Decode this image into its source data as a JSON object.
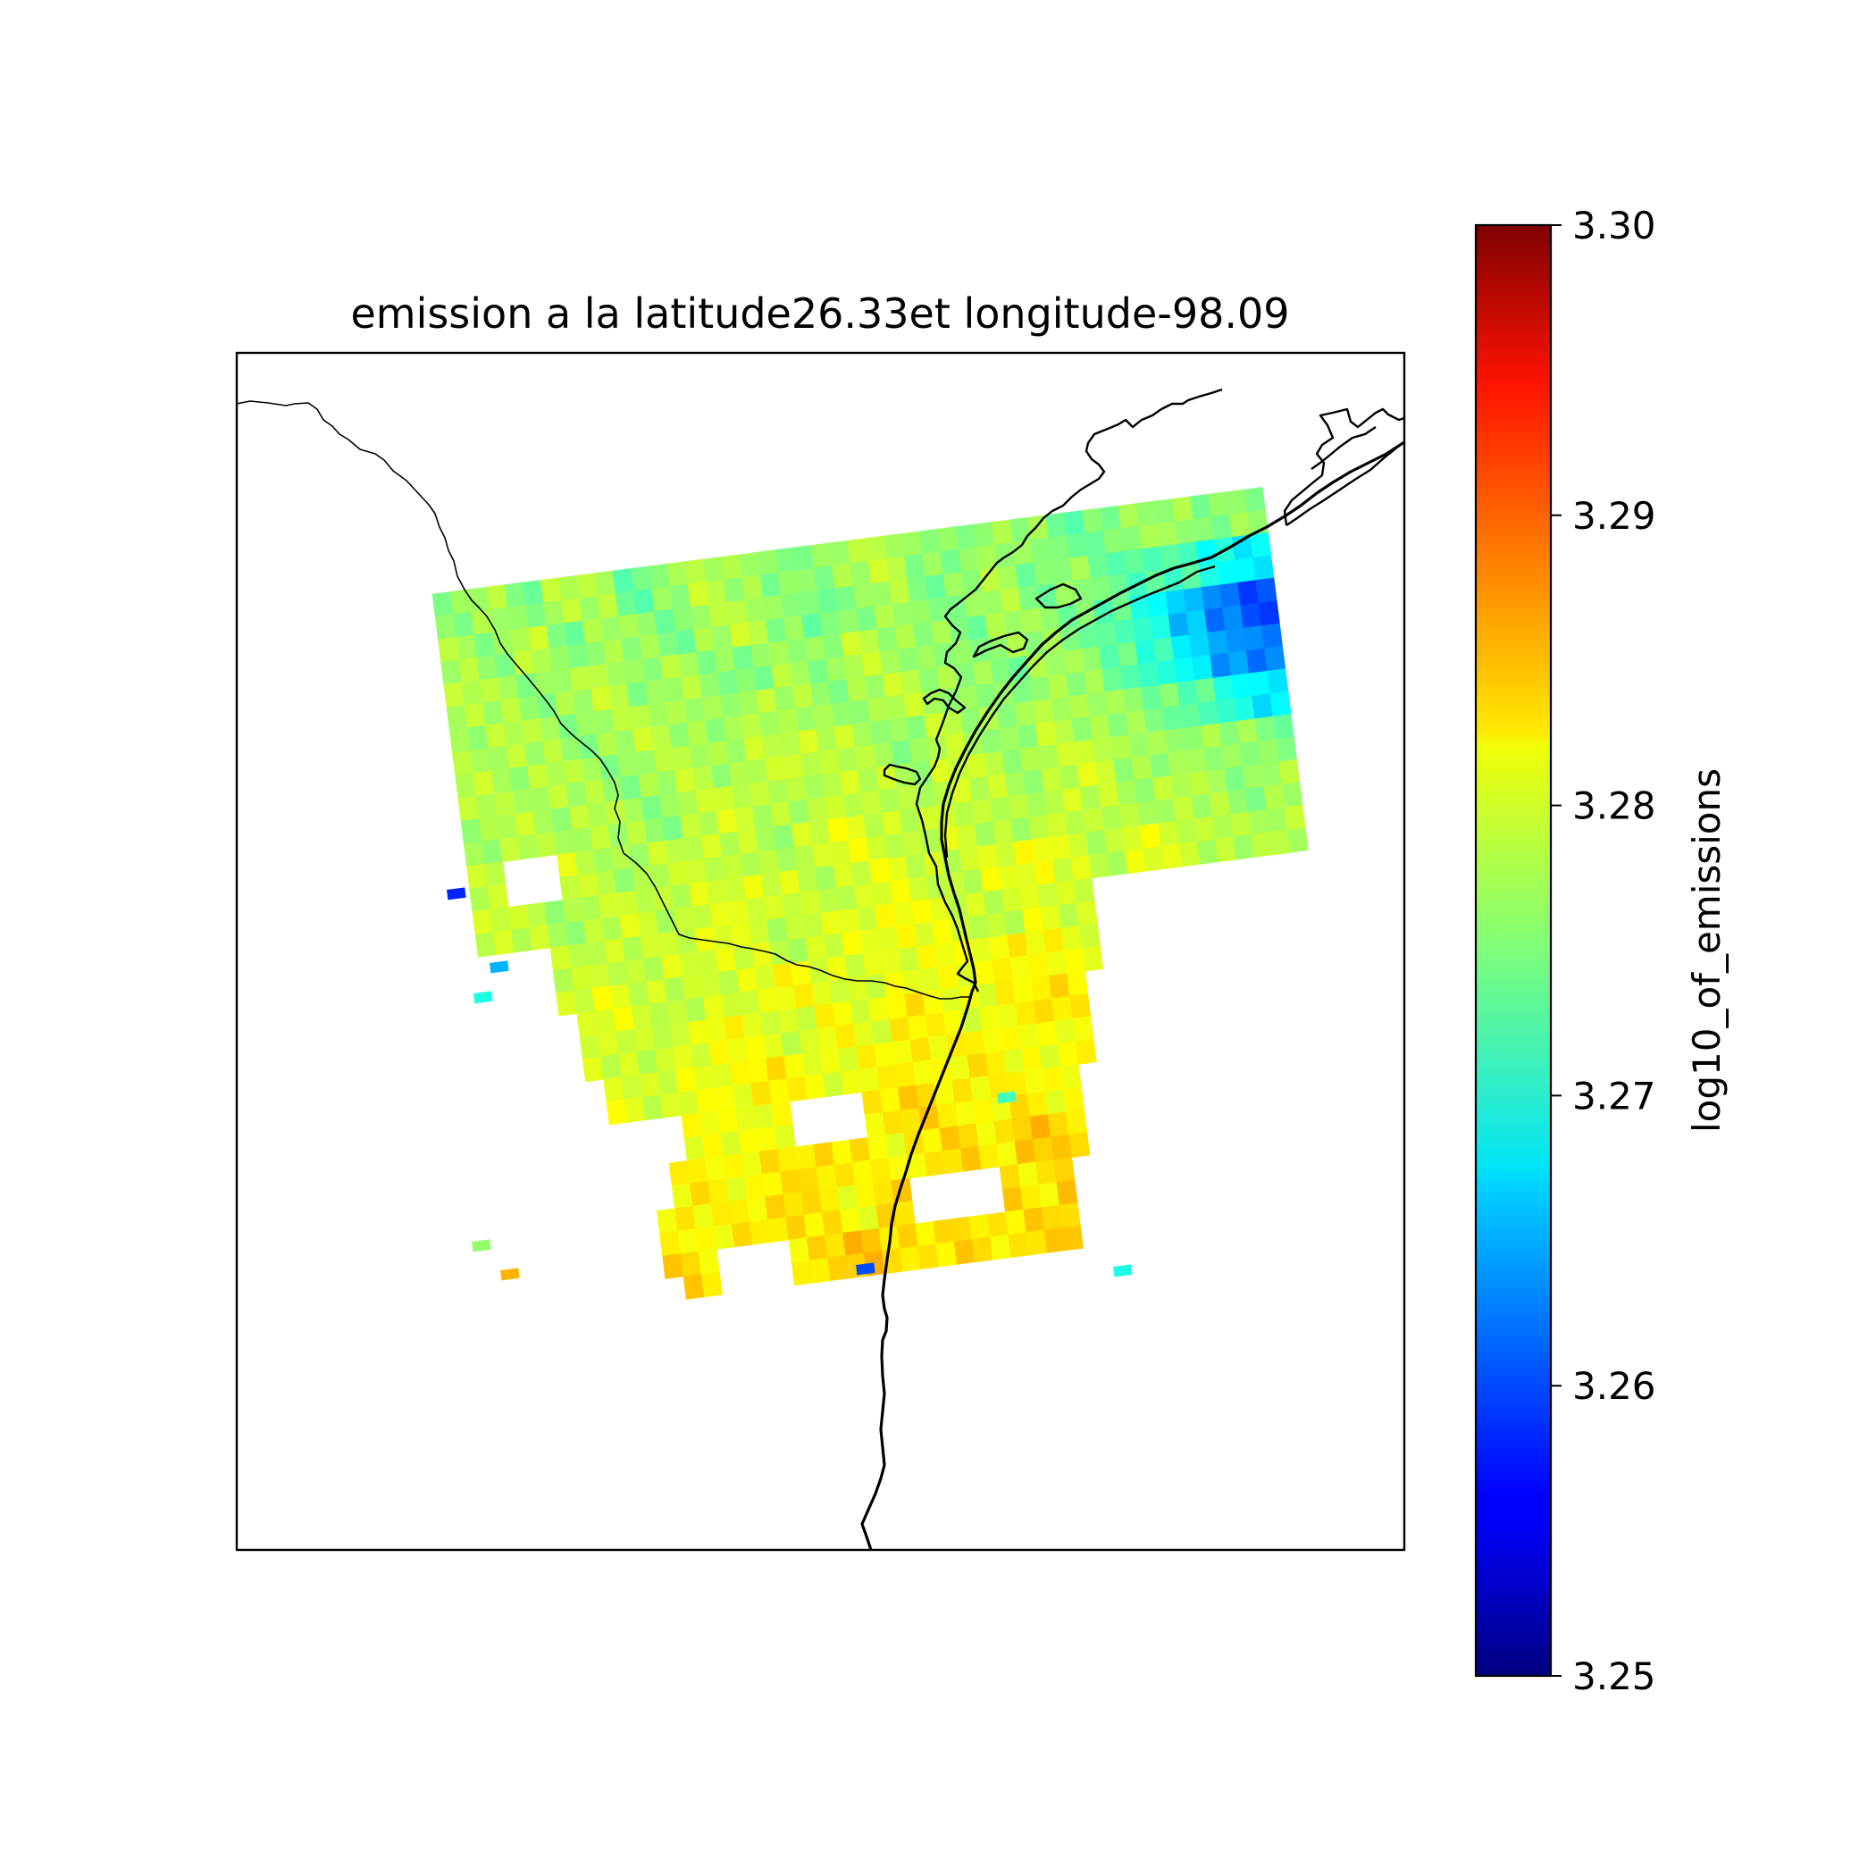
{
  "chart_data": {
    "type": "heatmap",
    "title": "emission a la latitude26.33et longitude-98.09",
    "colorbar": {
      "label": "log10_of_emissions",
      "colormap": "jet",
      "range": [
        3.25,
        3.3
      ],
      "ticks": [
        "3.25",
        "3.26",
        "3.27",
        "3.28",
        "3.29",
        "3.30"
      ],
      "tick_values": [
        3.25,
        3.26,
        3.27,
        3.28,
        3.29,
        3.3
      ],
      "position": "right"
    },
    "grid": false,
    "map_features": [
      "coastline",
      "state-border"
    ],
    "value_summary": {
      "typical": 3.277,
      "min_observed": 3.255,
      "max_observed": 3.285
    },
    "swath_rows": [
      {
        "start": 22,
        "end": 90,
        "values": [
          3.276,
          3.277,
          3.275,
          3.278,
          3.277,
          3.274,
          3.276,
          3.278,
          3.277,
          3.275,
          3.276,
          3.277,
          3.278,
          3.276,
          3.275,
          3.277,
          3.276,
          3.274,
          3.275,
          3.276,
          3.277,
          3.275,
          3.276,
          3.277
        ]
      },
      {
        "start": 22,
        "end": 90,
        "values": [
          3.277,
          3.276,
          3.278,
          3.275,
          3.277,
          3.276,
          3.275,
          3.277,
          3.278,
          3.276,
          3.274,
          3.276,
          3.277,
          3.275,
          3.276,
          3.277,
          3.275,
          3.276,
          3.274,
          3.273,
          3.272,
          3.27,
          3.268,
          3.266
        ]
      },
      {
        "start": 22,
        "end": 90,
        "values": [
          3.278,
          3.277,
          3.276,
          3.277,
          3.278,
          3.276,
          3.277,
          3.276,
          3.275,
          3.277,
          3.276,
          3.278,
          3.277,
          3.276,
          3.275,
          3.277,
          3.276,
          3.275,
          3.273,
          3.27,
          3.266,
          3.262,
          3.26,
          3.264
        ]
      },
      {
        "start": 22,
        "end": 90,
        "values": [
          3.277,
          3.278,
          3.277,
          3.276,
          3.277,
          3.278,
          3.277,
          3.276,
          3.278,
          3.277,
          3.276,
          3.277,
          3.278,
          3.277,
          3.276,
          3.275,
          3.277,
          3.276,
          3.274,
          3.271,
          3.268,
          3.264,
          3.262,
          3.266
        ]
      },
      {
        "start": 22,
        "end": 90,
        "values": [
          3.278,
          3.277,
          3.278,
          3.277,
          3.276,
          3.277,
          3.278,
          3.277,
          3.278,
          3.279,
          3.278,
          3.277,
          3.276,
          3.278,
          3.277,
          3.276,
          3.278,
          3.277,
          3.276,
          3.275,
          3.273,
          3.27,
          3.268,
          3.27
        ]
      },
      {
        "start": 22,
        "end": 90,
        "values": [
          3.277,
          3.278,
          3.277,
          3.278,
          3.277,
          3.276,
          3.278,
          3.279,
          3.278,
          3.277,
          3.279,
          3.278,
          3.277,
          3.279,
          3.278,
          3.277,
          3.278,
          3.279,
          3.277,
          3.276,
          3.277,
          3.276,
          3.275,
          3.274
        ]
      },
      {
        "start": 22,
        "end": 90,
        "values": [
          3.278,
          3.277,
          3.279,
          3.278,
          3.277,
          3.278,
          3.279,
          3.278,
          3.277,
          3.279,
          3.28,
          3.279,
          3.278,
          3.279,
          3.278,
          3.277,
          3.279,
          3.278,
          3.277,
          3.278,
          3.277,
          3.276,
          3.277,
          3.276
        ]
      },
      {
        "start": 22,
        "end": 90,
        "values": [
          3.279,
          3.278,
          3.277,
          3.278,
          3.279,
          3.278,
          3.279,
          3.28,
          3.279,
          3.278,
          3.279,
          3.28,
          3.279,
          3.278,
          3.28,
          3.281,
          3.279,
          3.278,
          3.28,
          3.279,
          3.278,
          3.277,
          3.278,
          3.277
        ]
      },
      {
        "start": 22,
        "end": 90,
        "values": [
          3.278,
          3.279,
          3.278,
          3.279,
          3.278,
          3.279,
          3.28,
          3.279,
          3.278,
          3.279,
          3.28,
          3.281,
          3.28,
          3.279,
          3.278,
          3.28,
          3.279,
          3.281,
          3.28,
          3.279,
          3.278,
          3.279,
          3.278,
          3.276
        ]
      },
      {
        "start": 22,
        "end": 90,
        "values": [
          3.279,
          3.278,
          3.279,
          3.28,
          3.279,
          3.278,
          3.279,
          3.28,
          3.281,
          3.28,
          3.279,
          3.28,
          3.281,
          3.28,
          3.282,
          3.281,
          3.28,
          3.279,
          3.28,
          3.279,
          3.278,
          3.277,
          3.276,
          3.275
        ]
      },
      {
        "start": 22,
        "end": 90,
        "values": [
          3.28,
          3.279,
          3.28,
          3.279,
          3.278,
          3.28,
          3.281,
          3.28,
          3.279,
          3.281,
          3.28,
          3.282,
          3.281,
          3.28,
          3.281,
          3.283,
          3.282,
          3.281,
          3.28,
          3.279,
          3.278,
          3.276,
          3.27,
          3.264
        ]
      },
      {
        "start": 22,
        "end": 90,
        "values": [
          3.279,
          3.28,
          3.281,
          3.28,
          3.279,
          3.28,
          3.281,
          3.282,
          3.281,
          3.28,
          3.281,
          3.282,
          3.281,
          3.282,
          3.281,
          3.28,
          3.282,
          3.281,
          3.28,
          3.279,
          3.278,
          3.274,
          3.262,
          3.256
        ]
      },
      {
        "start": 22,
        "end": 90,
        "values": [
          3.28,
          3.281,
          3.28,
          3.281,
          3.282,
          3.281,
          3.28,
          3.281,
          3.282,
          3.281,
          3.282,
          3.283,
          3.282,
          3.281,
          3.282,
          3.281,
          3.283,
          3.282,
          3.281,
          3.28,
          3.279,
          3.277,
          3.268,
          3.262
        ]
      },
      {
        "start": 22,
        "end": 90,
        "values": [
          3.281,
          3.28,
          3.281,
          3.282,
          3.281,
          3.282,
          3.281,
          3.282,
          3.283,
          3.282,
          3.281,
          3.282,
          3.283,
          3.282,
          3.284,
          3.283,
          3.282,
          3.281,
          3.282,
          3.281,
          3.28,
          3.279,
          3.278,
          3.276
        ]
      },
      {
        "start": 22,
        "end": 90,
        "values": [
          3.28,
          3.281,
          3.282,
          3.281,
          3.282,
          3.281,
          3.282,
          3.283,
          3.282,
          3.281,
          3.283,
          3.282,
          3.281,
          3.283,
          3.282,
          3.284,
          3.283,
          3.282,
          3.281,
          3.282,
          3.281,
          3.28,
          3.279,
          3.278
        ]
      },
      {
        "start": 22,
        "end": 90,
        "values": [
          3.281,
          3.282,
          3.281,
          3.282,
          3.283,
          3.282,
          3.281,
          3.282,
          3.283,
          3.284,
          3.283,
          3.282,
          3.283,
          3.282,
          3.283,
          3.284,
          3.285,
          3.283,
          3.282,
          3.281,
          3.28,
          3.279,
          3.278,
          3.277
        ]
      }
    ]
  }
}
